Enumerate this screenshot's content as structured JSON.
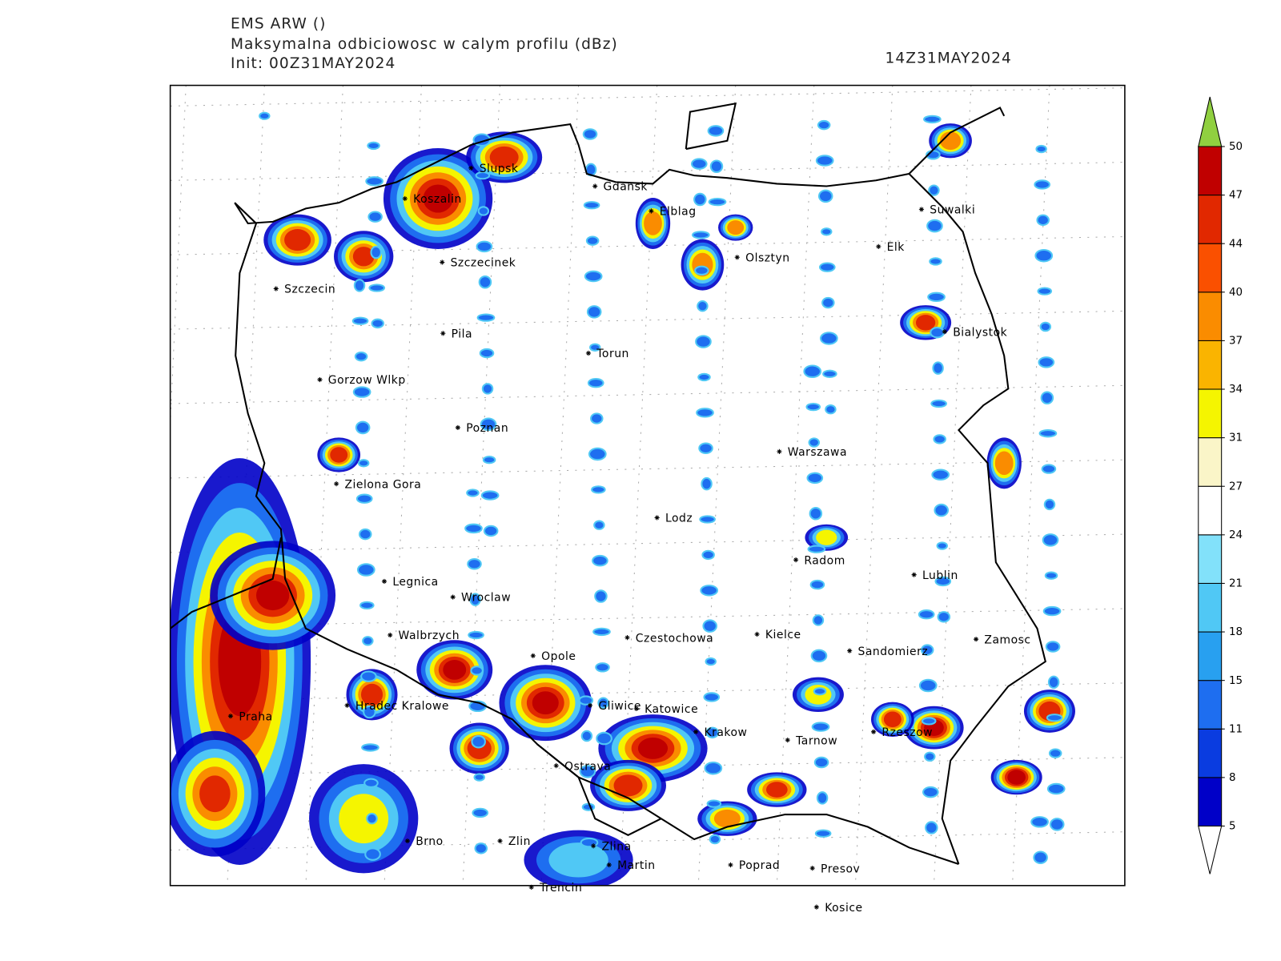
{
  "header": {
    "model": "EMS ARW ()",
    "field": "Maksymalna odbiciowosc w calym profilu (dBz)",
    "init": "Init: 00Z31MAY2024",
    "valid": "14Z31MAY2024"
  },
  "cities": [
    "Slupsk",
    "Koszalin",
    "Gdansk",
    "Elblag",
    "Suwalki",
    "Elk",
    "Olsztyn",
    "Szczecinek",
    "Szczecin",
    "Bialystok",
    "Pila",
    "Torun",
    "Gorzow Wlkp",
    "Poznan",
    "Warszawa",
    "Zielona Gora",
    "Lodz",
    "Radom",
    "Lublin",
    "Legnica",
    "Wroclaw",
    "Walbrzych",
    "Czestochowa",
    "Kielce",
    "Zamosc",
    "Sandomierz",
    "Opole",
    "Gliwice",
    "Katowice",
    "Hradec Kralowe",
    "Praha",
    "Krakow",
    "Tarnow",
    "Rzeszow",
    "Ostrava",
    "Brno",
    "Zlin",
    "Zlina",
    "Martin",
    "Poprad",
    "Presov",
    "Trencin",
    "Kosice"
  ],
  "colorbar": {
    "ticks": [
      5,
      8,
      11,
      15,
      18,
      21,
      24,
      27,
      31,
      34,
      37,
      40,
      44,
      47,
      50
    ],
    "colors": [
      "#0000c8",
      "#0a3ce0",
      "#1e6ef0",
      "#28a0f0",
      "#50c8f5",
      "#82e1fa",
      "#ffffff",
      "#faf5c8",
      "#f5f500",
      "#fab400",
      "#fa8c00",
      "#fa5000",
      "#e12800",
      "#c00000"
    ],
    "over_color": "#90d040",
    "under_color": "#ffffff"
  }
}
